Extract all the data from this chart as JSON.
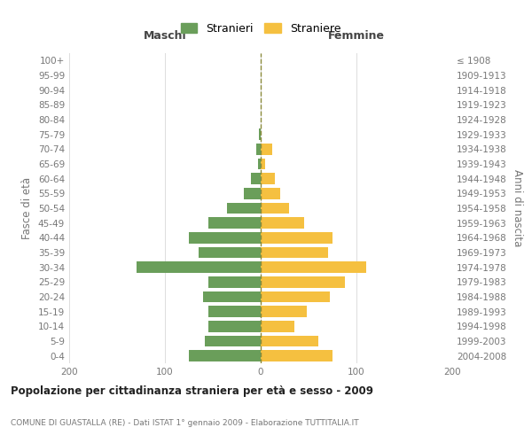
{
  "age_groups": [
    "0-4",
    "5-9",
    "10-14",
    "15-19",
    "20-24",
    "25-29",
    "30-34",
    "35-39",
    "40-44",
    "45-49",
    "50-54",
    "55-59",
    "60-64",
    "65-69",
    "70-74",
    "75-79",
    "80-84",
    "85-89",
    "90-94",
    "95-99",
    "100+"
  ],
  "birth_years": [
    "2004-2008",
    "1999-2003",
    "1994-1998",
    "1989-1993",
    "1984-1988",
    "1979-1983",
    "1974-1978",
    "1969-1973",
    "1964-1968",
    "1959-1963",
    "1954-1958",
    "1949-1953",
    "1944-1948",
    "1939-1943",
    "1934-1938",
    "1929-1933",
    "1924-1928",
    "1919-1923",
    "1914-1918",
    "1909-1913",
    "≤ 1908"
  ],
  "maschi": [
    75,
    58,
    55,
    55,
    60,
    55,
    130,
    65,
    75,
    55,
    35,
    18,
    10,
    3,
    5,
    2,
    0,
    0,
    0,
    0,
    0
  ],
  "femmine": [
    75,
    60,
    35,
    48,
    72,
    88,
    110,
    70,
    75,
    45,
    30,
    20,
    15,
    5,
    12,
    0,
    0,
    0,
    0,
    0,
    0
  ],
  "color_maschi": "#6a9e5a",
  "color_femmine": "#f5c040",
  "color_dashed_line": "#8a8a3a",
  "title": "Popolazione per cittadinanza straniera per età e sesso - 2009",
  "subtitle": "COMUNE DI GUASTALLA (RE) - Dati ISTAT 1° gennaio 2009 - Elaborazione TUTTITALIA.IT",
  "xlabel_left": "Maschi",
  "xlabel_right": "Femmine",
  "ylabel_left": "Fasce di età",
  "ylabel_right": "Anni di nascita",
  "legend_maschi": "Stranieri",
  "legend_femmine": "Straniere",
  "xlim": 200,
  "bg_color": "#ffffff",
  "grid_color": "#dddddd"
}
